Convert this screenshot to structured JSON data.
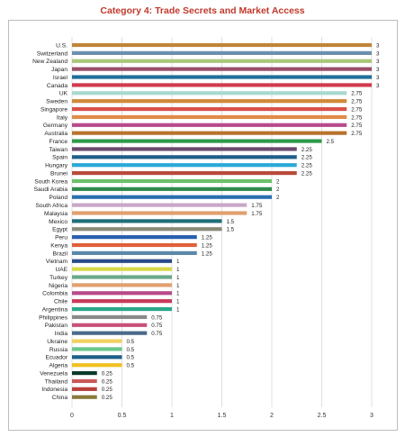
{
  "title": "Category 4: Trade Secrets and Market Access",
  "chart_data": {
    "type": "bar",
    "orientation": "horizontal",
    "title": "Category 4: Trade Secrets and Market Access",
    "xlabel": "",
    "ylabel": "",
    "xlim": [
      0,
      3
    ],
    "xticks": [
      0,
      0.5,
      1,
      1.5,
      2,
      2.5,
      3
    ],
    "xtick_labels": [
      "0",
      "0.5",
      "1",
      "1.5",
      "2",
      "2.5",
      "3"
    ],
    "grid": "vertical",
    "categories": [
      "U.S.",
      "Switzerland",
      "New Zealand",
      "Japan",
      "Israel",
      "Canada",
      "UK",
      "Sweden",
      "Singapore",
      "Italy",
      "Germany",
      "Australia",
      "France",
      "Taiwan",
      "Spain",
      "Hungary",
      "Brunei",
      "South Korea",
      "Saudi Arabia",
      "Poland",
      "South Africa",
      "Malaysia",
      "Mexico",
      "Egypt",
      "Peru",
      "Kenya",
      "Brazil",
      "Vietnam",
      "UAE",
      "Turkey",
      "Nigeria",
      "Colombia",
      "Chile",
      "Argentina",
      "Philippines",
      "Pakistan",
      "India",
      "Ukraine",
      "Russia",
      "Ecuador",
      "Algeria",
      "Venezuela",
      "Thailand",
      "Indonesia",
      "China"
    ],
    "values": [
      3,
      3,
      3,
      3,
      3,
      3,
      2.75,
      2.75,
      2.75,
      2.75,
      2.75,
      2.75,
      2.5,
      2.25,
      2.25,
      2.25,
      2.25,
      2,
      2,
      2,
      1.75,
      1.75,
      1.5,
      1.5,
      1.25,
      1.25,
      1.25,
      1,
      1,
      1,
      1,
      1,
      1,
      1,
      0.75,
      0.75,
      0.75,
      0.5,
      0.5,
      0.5,
      0.5,
      0.25,
      0.25,
      0.25,
      0.25
    ],
    "value_labels": [
      "3",
      "3",
      "3",
      "3",
      "3",
      "3",
      "2.75",
      "2.75",
      "2.75",
      "2.75",
      "2.75",
      "2.75",
      "2.5",
      "2.25",
      "2.25",
      "2.25",
      "2.25",
      "2",
      "2",
      "2",
      "1.75",
      "1.75",
      "1.5",
      "1.5",
      "1.25",
      "1.25",
      "1.25",
      "1",
      "1",
      "1",
      "1",
      "1",
      "1",
      "1",
      "0.75",
      "0.75",
      "0.75",
      "0.5",
      "0.5",
      "0.5",
      "0.5",
      "0.25",
      "0.25",
      "0.25",
      "0.25"
    ],
    "colors": [
      "#c0853a",
      "#6b8fb0",
      "#a9c77a",
      "#9a4f6a",
      "#1f6f9a",
      "#d23a4e",
      "#a8d8d0",
      "#d08a3a",
      "#d8524a",
      "#e08c48",
      "#b94a8a",
      "#b8732e",
      "#2e9a4a",
      "#6b4a6e",
      "#1f5f8a",
      "#2aa8d8",
      "#b84a3a",
      "#6cc06a",
      "#2e8a4a",
      "#2a6fb0",
      "#c9a7c7",
      "#e0a070",
      "#1f6f7a",
      "#8a8a7a",
      "#2a5fb0",
      "#e0603a",
      "#5a88a8",
      "#2a4a8a",
      "#d8d848",
      "#68a888",
      "#e0a070",
      "#b84a8a",
      "#c83a5a",
      "#2aa88a",
      "#8a8a8a",
      "#c8507a",
      "#4a6a8a",
      "#f0d060",
      "#6ac88a",
      "#1f5f8a",
      "#f0c020",
      "#0a3a2a",
      "#c85a5a",
      "#b8403a",
      "#8a7a3a"
    ]
  }
}
